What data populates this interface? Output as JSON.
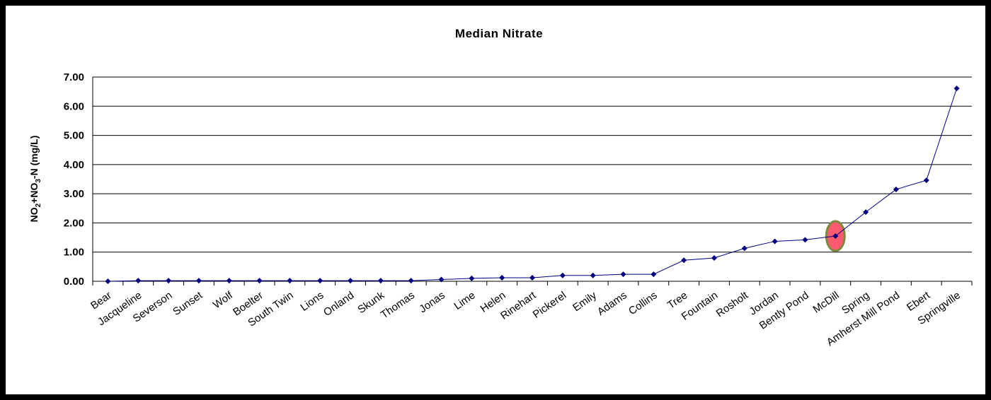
{
  "chart_data": {
    "type": "line",
    "title": "Median Nitrate",
    "ylabel": "NO₂+NO₃-N (mg/L)",
    "ylabel_parts": {
      "a": "NO",
      "sub1": "2",
      "b": "+NO",
      "sub2": "3",
      "c": "-N (mg/L)"
    },
    "xlabel": "",
    "ylim": [
      0,
      7
    ],
    "ytick_values": [
      0,
      1,
      2,
      3,
      4,
      5,
      6,
      7
    ],
    "ytick_labels": [
      "0.00",
      "1.00",
      "2.00",
      "3.00",
      "4.00",
      "5.00",
      "6.00",
      "7.00"
    ],
    "grid": true,
    "legend": "none",
    "categories": [
      "Bear",
      "Jacqueline",
      "Severson",
      "Sunset",
      "Wolf",
      "Boelter",
      "South Twin",
      "Lions",
      "Onland",
      "Skunk",
      "Thomas",
      "Jonas",
      "Lime",
      "Helen",
      "Rinehart",
      "Pickerel",
      "Emily",
      "Adams",
      "Collins",
      "Tree",
      "Fountain",
      "Rosholt",
      "Jordan",
      "Bently Pond",
      "McDill",
      "Spring",
      "Amherst Mill Pond",
      "Ebert",
      "Springville"
    ],
    "series": [
      {
        "values": [
          0.0,
          0.02,
          0.02,
          0.02,
          0.02,
          0.02,
          0.02,
          0.02,
          0.02,
          0.02,
          0.02,
          0.06,
          0.1,
          0.12,
          0.12,
          0.2,
          0.2,
          0.24,
          0.24,
          0.72,
          0.8,
          1.13,
          1.37,
          1.42,
          1.55,
          2.37,
          3.15,
          3.46,
          6.61
        ]
      }
    ],
    "highlight": {
      "category": "McDill",
      "value": 1.55
    },
    "colors": {
      "line": "#000080",
      "marker": "#000080",
      "grid": "#000000",
      "highlight_fill": "#ff5a6e",
      "highlight_stroke": "#7a8a3c"
    }
  }
}
